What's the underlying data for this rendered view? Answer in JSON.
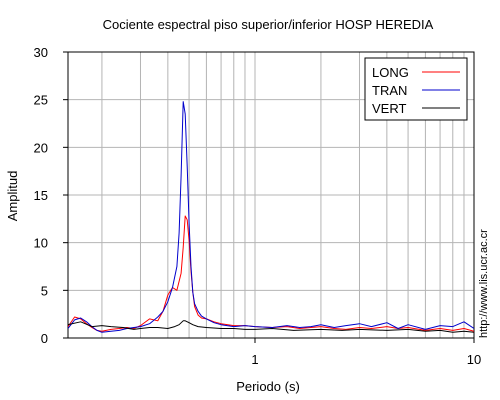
{
  "chart_data": {
    "type": "line",
    "title": "Cociente espectral piso superior/inferior  HOSP HEREDIA",
    "xlabel": "Periodo (s)",
    "ylabel": "Amplitud",
    "xscale": "log",
    "xlim": [
      0.14,
      10
    ],
    "ylim": [
      0,
      30
    ],
    "x_tick_labels": [
      "1",
      "10"
    ],
    "y_tick_labels": [
      "0",
      "5",
      "10",
      "15",
      "20",
      "25",
      "30"
    ],
    "grid": true,
    "legend_position": "top-right",
    "side_note": "http://www.lis.ucr.ac.cr",
    "series": [
      {
        "name": "LONG",
        "color": "#ff0000",
        "x": [
          0.14,
          0.15,
          0.16,
          0.17,
          0.18,
          0.19,
          0.2,
          0.22,
          0.24,
          0.26,
          0.28,
          0.3,
          0.33,
          0.36,
          0.38,
          0.4,
          0.42,
          0.44,
          0.46,
          0.47,
          0.48,
          0.49,
          0.5,
          0.51,
          0.52,
          0.53,
          0.55,
          0.57,
          0.6,
          0.65,
          0.7,
          0.8,
          0.9,
          1.0,
          1.2,
          1.4,
          1.6,
          1.8,
          2.0,
          2.3,
          2.6,
          3.0,
          3.4,
          4.0,
          4.5,
          5.0,
          6.0,
          7.0,
          8.0,
          9.0,
          10.0
        ],
        "values": [
          1.2,
          2.2,
          2.0,
          1.5,
          1.1,
          0.8,
          0.7,
          0.9,
          1.0,
          1.1,
          1.0,
          1.3,
          2.0,
          1.8,
          2.8,
          4.5,
          5.3,
          5.0,
          6.8,
          9.5,
          12.8,
          12.4,
          10.2,
          7.0,
          4.8,
          3.3,
          2.4,
          2.1,
          2.0,
          1.7,
          1.5,
          1.3,
          1.3,
          1.2,
          1.1,
          1.2,
          1.0,
          1.1,
          1.2,
          1.0,
          0.9,
          1.1,
          1.0,
          1.2,
          1.0,
          1.1,
          0.8,
          1.0,
          0.8,
          1.0,
          0.7
        ]
      },
      {
        "name": "TRAN",
        "color": "#0000cc",
        "x": [
          0.14,
          0.15,
          0.16,
          0.17,
          0.18,
          0.19,
          0.2,
          0.22,
          0.24,
          0.26,
          0.28,
          0.3,
          0.33,
          0.36,
          0.38,
          0.4,
          0.42,
          0.44,
          0.45,
          0.46,
          0.47,
          0.48,
          0.49,
          0.5,
          0.51,
          0.52,
          0.53,
          0.55,
          0.57,
          0.6,
          0.65,
          0.7,
          0.8,
          0.9,
          1.0,
          1.2,
          1.4,
          1.6,
          1.8,
          2.0,
          2.3,
          2.6,
          3.0,
          3.4,
          4.0,
          4.5,
          5.0,
          6.0,
          7.0,
          8.0,
          9.0,
          10.0
        ],
        "values": [
          1.0,
          1.9,
          2.1,
          1.7,
          1.2,
          0.8,
          0.6,
          0.7,
          0.8,
          1.0,
          1.1,
          1.2,
          1.5,
          2.2,
          2.8,
          3.8,
          5.3,
          7.5,
          11.0,
          17.0,
          24.8,
          23.5,
          18.0,
          12.0,
          7.5,
          4.8,
          3.6,
          2.8,
          2.3,
          2.0,
          1.6,
          1.4,
          1.2,
          1.3,
          1.2,
          1.1,
          1.3,
          1.1,
          1.2,
          1.4,
          1.1,
          1.3,
          1.5,
          1.2,
          1.6,
          1.0,
          1.4,
          0.9,
          1.3,
          1.2,
          1.7,
          1.0
        ]
      },
      {
        "name": "VERT",
        "color": "#000000",
        "x": [
          0.14,
          0.16,
          0.18,
          0.2,
          0.22,
          0.25,
          0.28,
          0.3,
          0.33,
          0.36,
          0.4,
          0.43,
          0.45,
          0.47,
          0.48,
          0.5,
          0.52,
          0.55,
          0.6,
          0.7,
          0.8,
          0.9,
          1.0,
          1.2,
          1.5,
          2.0,
          2.5,
          3.0,
          4.0,
          5.0,
          6.0,
          7.0,
          8.0,
          9.0,
          10.0
        ],
        "values": [
          1.4,
          1.7,
          1.2,
          1.3,
          1.2,
          1.1,
          0.9,
          1.0,
          1.1,
          1.1,
          1.0,
          1.2,
          1.4,
          1.8,
          1.8,
          1.6,
          1.4,
          1.2,
          1.1,
          1.0,
          1.0,
          0.9,
          0.9,
          1.0,
          0.8,
          0.9,
          0.8,
          0.9,
          0.8,
          0.9,
          0.7,
          0.8,
          0.6,
          0.7,
          0.6
        ]
      }
    ]
  }
}
